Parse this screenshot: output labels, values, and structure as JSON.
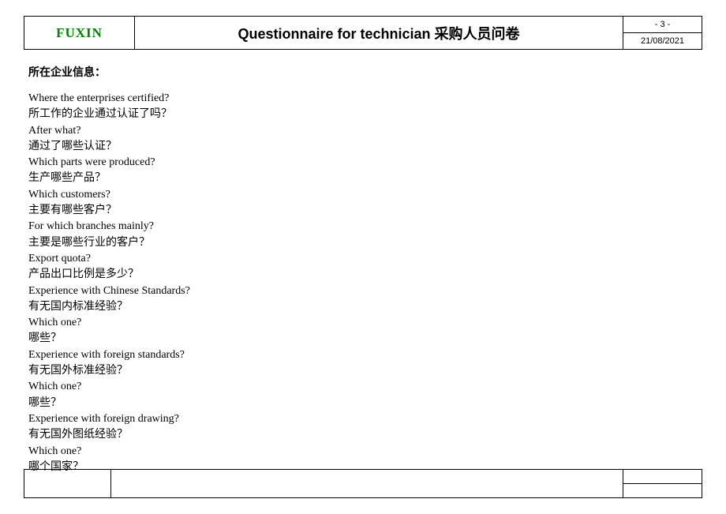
{
  "header": {
    "logo": "FUXIN",
    "title": "Questionnaire for technician 采购人员问卷",
    "page": "- 3 -",
    "date": "21/08/2021"
  },
  "section_title": "所在企业信息：",
  "questions": [
    {
      "en": "Where the enterprises certified?",
      "zh": "所工作的企业通过认证了吗？"
    },
    {
      "en": "After what?",
      "zh": "通过了哪些认证？"
    },
    {
      "en": "Which parts were produced?",
      "zh": "生产哪些产品？"
    },
    {
      "en": "Which customers?",
      "zh": "主要有哪些客户？"
    },
    {
      "en": "For which branches mainly?",
      "zh": "主要是哪些行业的客户？"
    },
    {
      "en": "Export quota?",
      "zh": "产品出口比例是多少？"
    },
    {
      "en": "Experience with Chinese Standards?",
      "zh": "有无国内标准经验？"
    },
    {
      "en": "Which one?",
      "zh": "哪些？"
    },
    {
      "en": "Experience with foreign standards?",
      "zh": "有无国外标准经验？"
    },
    {
      "en": "Which one?",
      "zh": "哪些？"
    },
    {
      "en": "Experience with foreign drawing?",
      "zh": "有无国外图纸经验？"
    },
    {
      "en": "Which one?",
      "zh": "哪个国家？"
    }
  ],
  "colors": {
    "logo": "#008000",
    "border": "#000000",
    "text": "#000000",
    "background": "#ffffff"
  }
}
